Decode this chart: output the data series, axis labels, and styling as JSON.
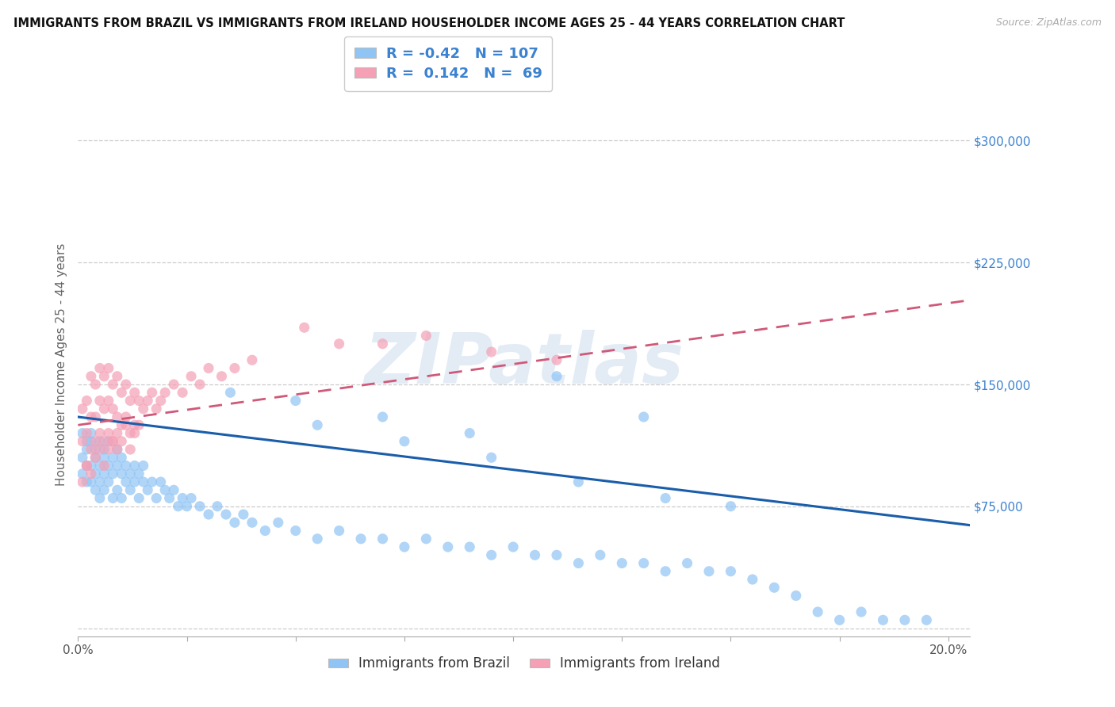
{
  "title": "IMMIGRANTS FROM BRAZIL VS IMMIGRANTS FROM IRELAND HOUSEHOLDER INCOME AGES 25 - 44 YEARS CORRELATION CHART",
  "source": "Source: ZipAtlas.com",
  "ylabel": "Householder Income Ages 25 - 44 years",
  "xlim": [
    0.0,
    0.205
  ],
  "ylim": [
    -5000,
    330000
  ],
  "yticks": [
    0,
    75000,
    150000,
    225000,
    300000
  ],
  "ytick_labels": [
    "",
    "$75,000",
    "$150,000",
    "$225,000",
    "$300,000"
  ],
  "xticks": [
    0.0,
    0.05,
    0.1,
    0.15,
    0.2
  ],
  "xtick_labels": [
    "0.0%",
    "",
    "",
    "",
    "20.0%"
  ],
  "brazil_color": "#90C4F5",
  "ireland_color": "#F5A0B5",
  "brazil_R": -0.42,
  "brazil_N": 107,
  "ireland_R": 0.142,
  "ireland_N": 69,
  "brazil_trend_color": "#1A5DAB",
  "ireland_trend_color": "#D05878",
  "watermark": "ZIPatlas",
  "legend_label_brazil": "Immigrants from Brazil",
  "legend_label_ireland": "Immigrants from Ireland",
  "background_color": "#FFFFFF",
  "grid_color": "#CCCCCC",
  "title_color": "#111111",
  "axis_label_color": "#3B82D0",
  "stat_color": "#3B82D0",
  "brazil_x": [
    0.001,
    0.001,
    0.001,
    0.002,
    0.002,
    0.002,
    0.002,
    0.003,
    0.003,
    0.003,
    0.003,
    0.004,
    0.004,
    0.004,
    0.004,
    0.005,
    0.005,
    0.005,
    0.005,
    0.006,
    0.006,
    0.006,
    0.006,
    0.007,
    0.007,
    0.007,
    0.008,
    0.008,
    0.008,
    0.009,
    0.009,
    0.009,
    0.01,
    0.01,
    0.01,
    0.011,
    0.011,
    0.012,
    0.012,
    0.013,
    0.013,
    0.014,
    0.014,
    0.015,
    0.015,
    0.016,
    0.017,
    0.018,
    0.019,
    0.02,
    0.021,
    0.022,
    0.023,
    0.024,
    0.025,
    0.026,
    0.028,
    0.03,
    0.032,
    0.034,
    0.036,
    0.038,
    0.04,
    0.043,
    0.046,
    0.05,
    0.055,
    0.06,
    0.065,
    0.07,
    0.075,
    0.08,
    0.085,
    0.09,
    0.095,
    0.1,
    0.105,
    0.11,
    0.115,
    0.12,
    0.125,
    0.13,
    0.135,
    0.14,
    0.145,
    0.15,
    0.155,
    0.16,
    0.165,
    0.17,
    0.175,
    0.18,
    0.185,
    0.19,
    0.195,
    0.05,
    0.07,
    0.09,
    0.11,
    0.13,
    0.035,
    0.055,
    0.075,
    0.095,
    0.115,
    0.135,
    0.15
  ],
  "brazil_y": [
    120000,
    105000,
    95000,
    115000,
    100000,
    110000,
    90000,
    115000,
    100000,
    90000,
    120000,
    105000,
    95000,
    110000,
    85000,
    100000,
    115000,
    90000,
    80000,
    105000,
    95000,
    110000,
    85000,
    100000,
    90000,
    115000,
    95000,
    105000,
    80000,
    100000,
    110000,
    85000,
    95000,
    105000,
    80000,
    100000,
    90000,
    95000,
    85000,
    100000,
    90000,
    95000,
    80000,
    90000,
    100000,
    85000,
    90000,
    80000,
    90000,
    85000,
    80000,
    85000,
    75000,
    80000,
    75000,
    80000,
    75000,
    70000,
    75000,
    70000,
    65000,
    70000,
    65000,
    60000,
    65000,
    60000,
    55000,
    60000,
    55000,
    55000,
    50000,
    55000,
    50000,
    50000,
    45000,
    50000,
    45000,
    45000,
    40000,
    45000,
    40000,
    40000,
    35000,
    40000,
    35000,
    35000,
    30000,
    25000,
    20000,
    10000,
    5000,
    10000,
    5000,
    5000,
    5000,
    140000,
    130000,
    120000,
    155000,
    130000,
    145000,
    125000,
    115000,
    105000,
    90000,
    80000,
    75000
  ],
  "ireland_x": [
    0.001,
    0.001,
    0.002,
    0.002,
    0.002,
    0.003,
    0.003,
    0.003,
    0.004,
    0.004,
    0.004,
    0.005,
    0.005,
    0.005,
    0.006,
    0.006,
    0.006,
    0.007,
    0.007,
    0.007,
    0.008,
    0.008,
    0.008,
    0.009,
    0.009,
    0.009,
    0.01,
    0.01,
    0.011,
    0.011,
    0.012,
    0.012,
    0.013,
    0.013,
    0.014,
    0.015,
    0.016,
    0.017,
    0.018,
    0.019,
    0.02,
    0.022,
    0.024,
    0.026,
    0.028,
    0.03,
    0.033,
    0.036,
    0.04,
    0.001,
    0.002,
    0.003,
    0.004,
    0.005,
    0.006,
    0.007,
    0.008,
    0.009,
    0.01,
    0.011,
    0.012,
    0.013,
    0.014,
    0.052,
    0.06,
    0.07,
    0.08,
    0.095,
    0.11
  ],
  "ireland_y": [
    135000,
    115000,
    140000,
    120000,
    100000,
    155000,
    130000,
    110000,
    150000,
    130000,
    115000,
    160000,
    140000,
    120000,
    155000,
    135000,
    115000,
    160000,
    140000,
    120000,
    150000,
    135000,
    115000,
    155000,
    130000,
    110000,
    145000,
    125000,
    150000,
    130000,
    140000,
    120000,
    145000,
    125000,
    140000,
    135000,
    140000,
    145000,
    135000,
    140000,
    145000,
    150000,
    145000,
    155000,
    150000,
    160000,
    155000,
    160000,
    165000,
    90000,
    100000,
    95000,
    105000,
    110000,
    100000,
    110000,
    115000,
    120000,
    115000,
    125000,
    110000,
    120000,
    125000,
    185000,
    175000,
    175000,
    180000,
    170000,
    165000
  ]
}
